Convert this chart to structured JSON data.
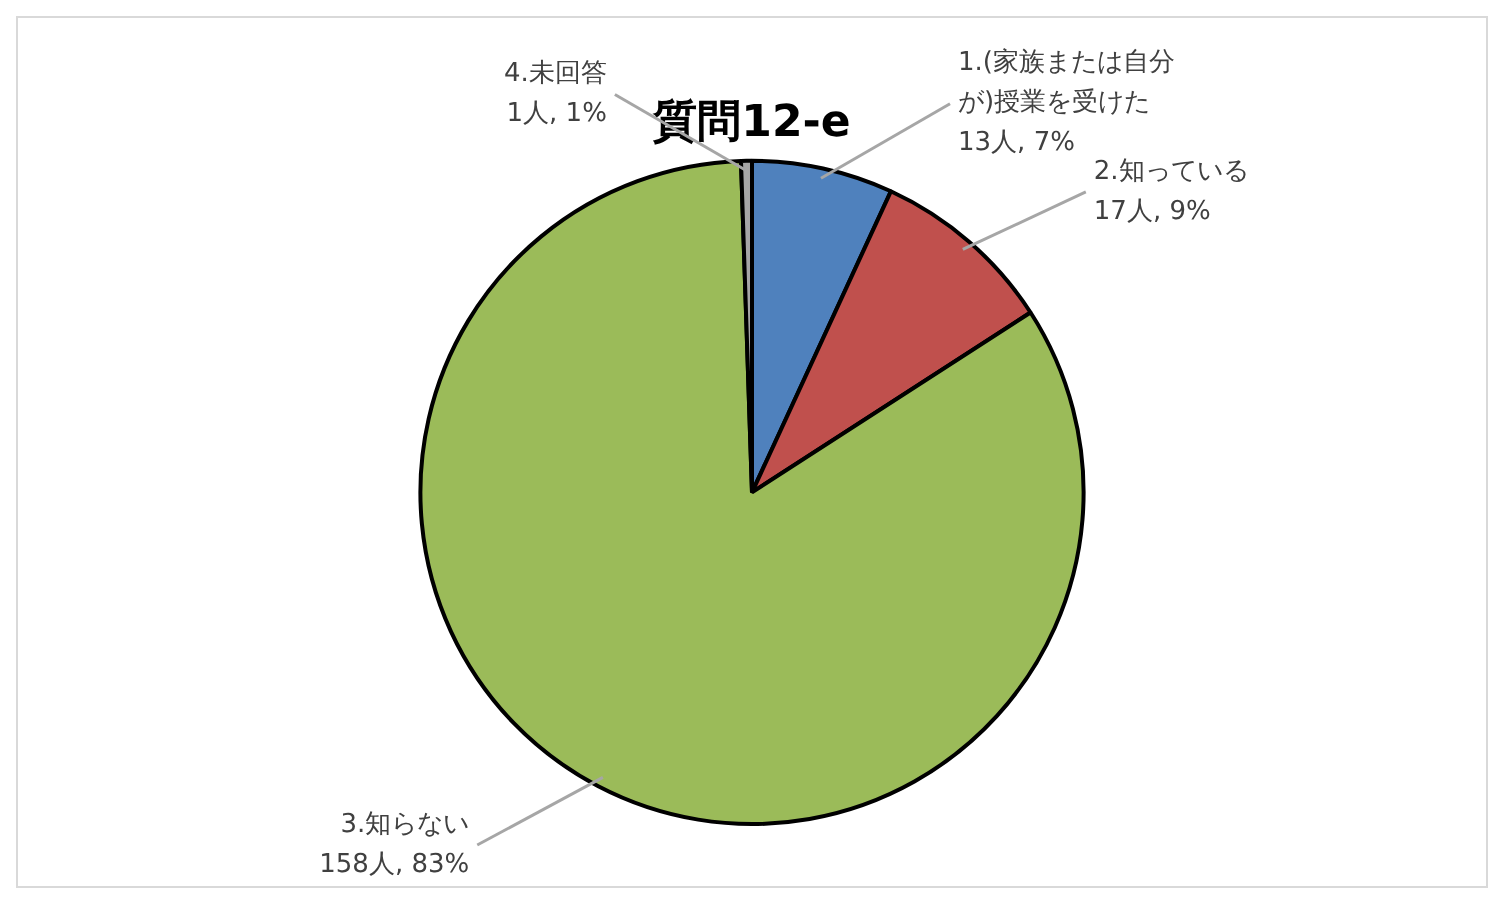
{
  "chart_data": {
    "type": "pie",
    "title": "質問12-e",
    "categories": [
      "1.(家族または自分が)授業を受けた",
      "2.知っている",
      "3.知らない",
      "4.未回答"
    ],
    "values": [
      13,
      17,
      158,
      1
    ],
    "value_labels": [
      "13人, 7%",
      "17人, 9%",
      "158人, 83%",
      "1人, 1%"
    ],
    "colors": [
      "#4f81bd",
      "#c0504d",
      "#9bbb59",
      "#a6a6a6"
    ],
    "legend": false
  }
}
